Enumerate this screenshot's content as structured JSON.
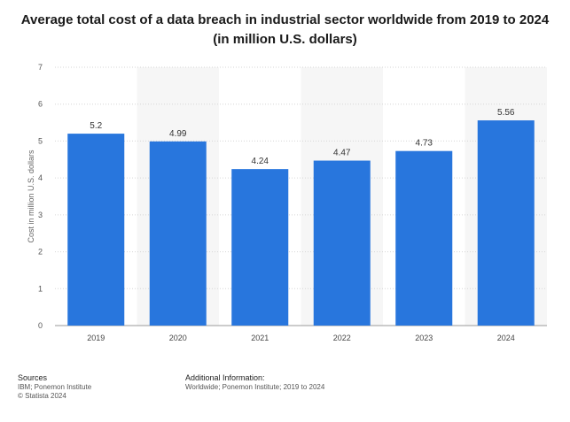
{
  "title_line1": "Average total cost of a data breach in industrial sector worldwide from 2019 to 2024",
  "title_line2": "(in million U.S. dollars)",
  "sources": {
    "heading": "Sources",
    "line1": "IBM; Ponemon Institute",
    "line2": "© Statista 2024"
  },
  "additional_info": {
    "heading": "Additional Information:",
    "line1": "Worldwide; Ponemon Institute; 2019 to 2024"
  },
  "colors": {
    "bar": "#2876dd",
    "band": "#f6f6f6",
    "grid": "#d6d6d6"
  },
  "chart_data": {
    "type": "bar",
    "title": "Average total cost of a data breach in industrial sector worldwide from 2019 to 2024 (in million U.S. dollars)",
    "xlabel": "",
    "ylabel": "Cost in million U.S. dollars",
    "categories": [
      "2019",
      "2020",
      "2021",
      "2022",
      "2023",
      "2024"
    ],
    "values": [
      5.2,
      4.99,
      4.24,
      4.47,
      4.73,
      5.56
    ],
    "value_labels": [
      "5.2",
      "4.99",
      "4.24",
      "4.47",
      "4.73",
      "5.56"
    ],
    "ylim": [
      0,
      7
    ],
    "yticks": [
      0,
      1,
      2,
      3,
      4,
      5,
      6,
      7
    ],
    "grid": true,
    "legend": "none"
  }
}
